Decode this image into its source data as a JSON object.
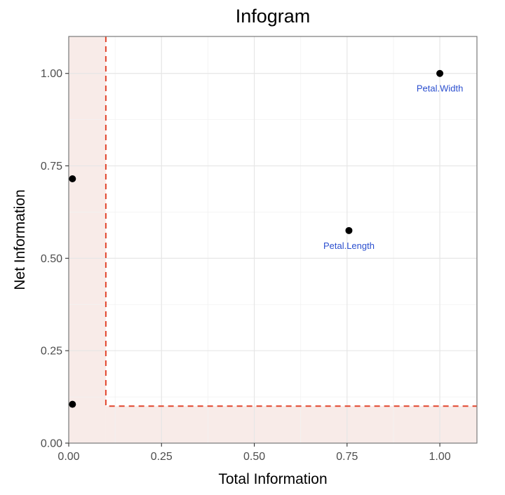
{
  "chart_data": {
    "type": "scatter",
    "title": "Infogram",
    "xlabel": "Total Information",
    "ylabel": "Net Information",
    "xlim": [
      0,
      1.1
    ],
    "ylim": [
      0,
      1.1
    ],
    "x_ticks": [
      0,
      0.25,
      0.5,
      0.75,
      1.0
    ],
    "y_ticks": [
      0,
      0.25,
      0.5,
      0.75,
      1.0
    ],
    "x_tick_labels": [
      "0.00",
      "0.25",
      "0.50",
      "0.75",
      "1.00"
    ],
    "y_tick_labels": [
      "0.00",
      "0.25",
      "0.50",
      "0.75",
      "1.00"
    ],
    "grid": true,
    "threshold": {
      "x": 0.1,
      "y": 0.1,
      "line_color": "#e2452c",
      "shade_color": "#f8ebe8"
    },
    "points": [
      {
        "x": 1.0,
        "y": 1.0,
        "label": "Petal.Width"
      },
      {
        "x": 0.755,
        "y": 0.575,
        "label": "Petal.Length"
      },
      {
        "x": 0.01,
        "y": 0.715,
        "label": ""
      },
      {
        "x": 0.01,
        "y": 0.105,
        "label": ""
      }
    ],
    "point_color": "#000000",
    "label_color": "#2b4fcf"
  }
}
